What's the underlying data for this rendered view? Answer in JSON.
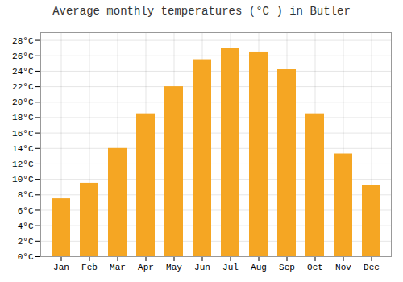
{
  "chart_data": {
    "type": "bar",
    "title": "Average monthly temperatures (°C ) in Butler",
    "categories": [
      "Jan",
      "Feb",
      "Mar",
      "Apr",
      "May",
      "Jun",
      "Jul",
      "Aug",
      "Sep",
      "Oct",
      "Nov",
      "Dec"
    ],
    "values": [
      7.5,
      9.5,
      14.0,
      18.5,
      22.0,
      25.5,
      27.0,
      26.5,
      24.2,
      18.5,
      13.3,
      9.2
    ],
    "color": "#F5A623",
    "ylim": [
      0,
      29
    ],
    "yticks": [
      {
        "value": 0,
        "label": "0°C"
      },
      {
        "value": 2,
        "label": "2°C"
      },
      {
        "value": 4,
        "label": "4°C"
      },
      {
        "value": 6,
        "label": "6°C"
      },
      {
        "value": 8,
        "label": "8°C"
      },
      {
        "value": 10,
        "label": "10°C"
      },
      {
        "value": 12,
        "label": "12°C"
      },
      {
        "value": 14,
        "label": "14°C"
      },
      {
        "value": 16,
        "label": "16°C"
      },
      {
        "value": 18,
        "label": "18°C"
      },
      {
        "value": 20,
        "label": "20°C"
      },
      {
        "value": 22,
        "label": "22°C"
      },
      {
        "value": 24,
        "label": "24°C"
      },
      {
        "value": 26,
        "label": "26°C"
      },
      {
        "value": 28,
        "label": "28°C"
      }
    ],
    "grid": true
  }
}
